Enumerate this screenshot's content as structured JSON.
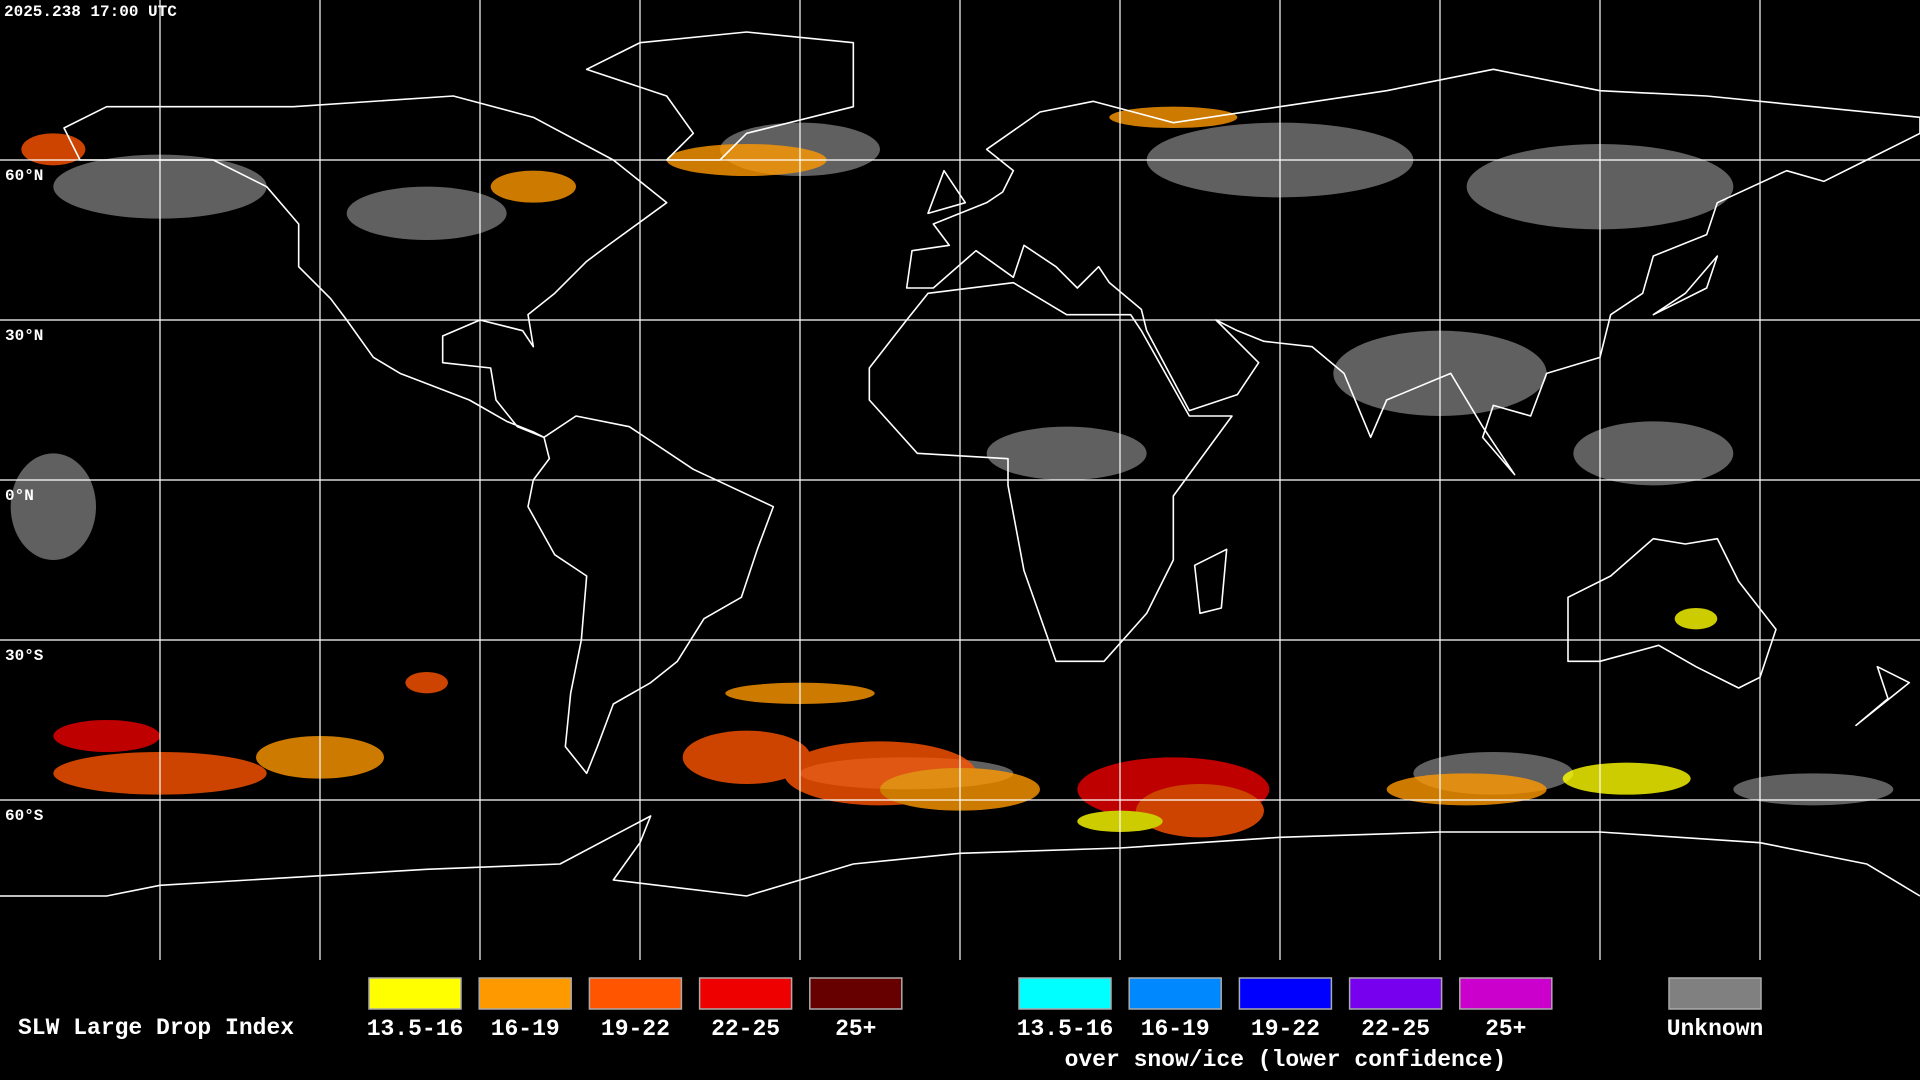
{
  "timestamp": "2025.238 17:00 UTC",
  "latitude_labels": [
    "60°N",
    "30°N",
    "0°N",
    "30°S",
    "60°S"
  ],
  "legend": {
    "title": "SLW Large Drop Index",
    "groups": [
      {
        "items": [
          {
            "label": "13.5-16",
            "color": "#ffff00"
          },
          {
            "label": "16-19",
            "color": "#ff9900"
          },
          {
            "label": "19-22",
            "color": "#ff5500"
          },
          {
            "label": "22-25",
            "color": "#ee0000"
          },
          {
            "label": "25+",
            "color": "#660000"
          }
        ]
      },
      {
        "items": [
          {
            "label": "13.5-16",
            "color": "#00ffff"
          },
          {
            "label": "16-19",
            "color": "#0088ff"
          },
          {
            "label": "19-22",
            "color": "#0000ff"
          },
          {
            "label": "22-25",
            "color": "#7700ee"
          },
          {
            "label": "25+",
            "color": "#cc00cc"
          }
        ],
        "caption": "over snow/ice (lower confidence)"
      }
    ],
    "unknown": {
      "label": "Unknown",
      "color": "#808080"
    }
  }
}
